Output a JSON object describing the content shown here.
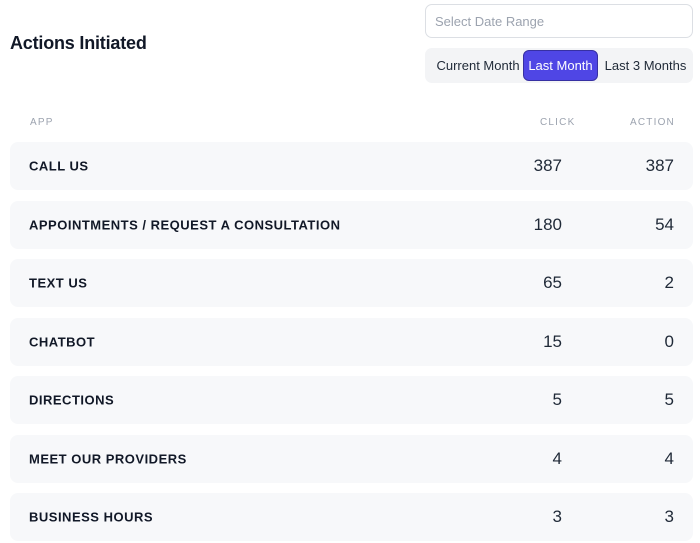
{
  "header": {
    "title": "Actions Initiated"
  },
  "date_range": {
    "placeholder": "Select Date Range",
    "value": ""
  },
  "period_tabs": [
    {
      "label": "Current Month",
      "active": false
    },
    {
      "label": "Last Month",
      "active": true
    },
    {
      "label": "Last 3 Months",
      "active": false
    }
  ],
  "columns": {
    "app": "APP",
    "click": "CLICK",
    "action": "ACTION"
  },
  "rows": [
    {
      "app": "CALL US",
      "click": "387",
      "action": "387"
    },
    {
      "app": "APPOINTMENTS / REQUEST A CONSULTATION",
      "click": "180",
      "action": "54"
    },
    {
      "app": "TEXT US",
      "click": "65",
      "action": "2"
    },
    {
      "app": "CHATBOT",
      "click": "15",
      "action": "0"
    },
    {
      "app": "DIRECTIONS",
      "click": "5",
      "action": "5"
    },
    {
      "app": "MEET OUR PROVIDERS",
      "click": "4",
      "action": "4"
    },
    {
      "app": "BUSINESS HOURS",
      "click": "3",
      "action": "3"
    }
  ],
  "colors": {
    "accent": "#4f46e5",
    "row_background": "#f7f8fa",
    "segment_background": "#f3f4f6"
  }
}
